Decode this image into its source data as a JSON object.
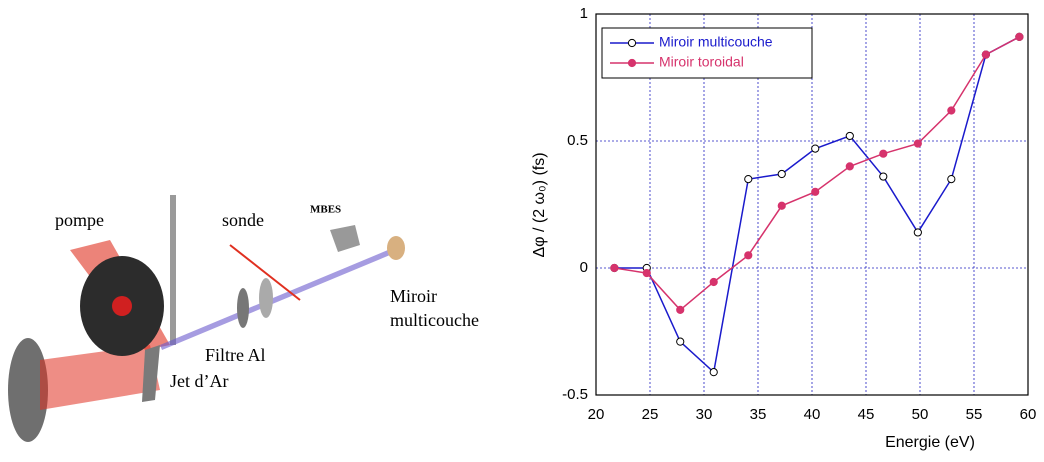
{
  "diagram": {
    "labels": {
      "pompe": "pompe",
      "sonde": "sonde",
      "mbes": "MBES",
      "miroir": [
        "Miroir",
        "multicouche"
      ],
      "filtre": "Filtre Al",
      "jet": "Jet d’Ar"
    }
  },
  "chart_data": {
    "type": "line",
    "x_label": "Energie (eV)",
    "y_label": "Δφ / (2 ω₀) (fs)",
    "xlim": [
      20,
      60
    ],
    "xticks": [
      20,
      25,
      30,
      35,
      40,
      45,
      50,
      55,
      60
    ],
    "ylim": [
      -0.5,
      1
    ],
    "yticks": [
      -0.5,
      0,
      0.5,
      1
    ],
    "grid": true,
    "legend": "upper left",
    "x": [
      21.7,
      24.7,
      27.8,
      30.9,
      34.1,
      37.2,
      40.3,
      43.5,
      46.6,
      49.8,
      52.9,
      56.1,
      59.2
    ],
    "series": [
      {
        "name": "Miroir multicouche",
        "color": "#1a1acc",
        "marker": "open",
        "values": [
          0,
          0,
          -0.29,
          -0.41,
          0.35,
          0.37,
          0.47,
          0.52,
          0.36,
          0.14,
          0.35,
          0.84,
          0.91
        ]
      },
      {
        "name": "Miroir toroidal",
        "color": "#d6336c",
        "marker": "filled",
        "values": [
          0,
          -0.02,
          -0.165,
          -0.055,
          0.05,
          0.245,
          0.3,
          0.4,
          0.45,
          0.49,
          0.62,
          0.84,
          0.91
        ]
      }
    ]
  }
}
